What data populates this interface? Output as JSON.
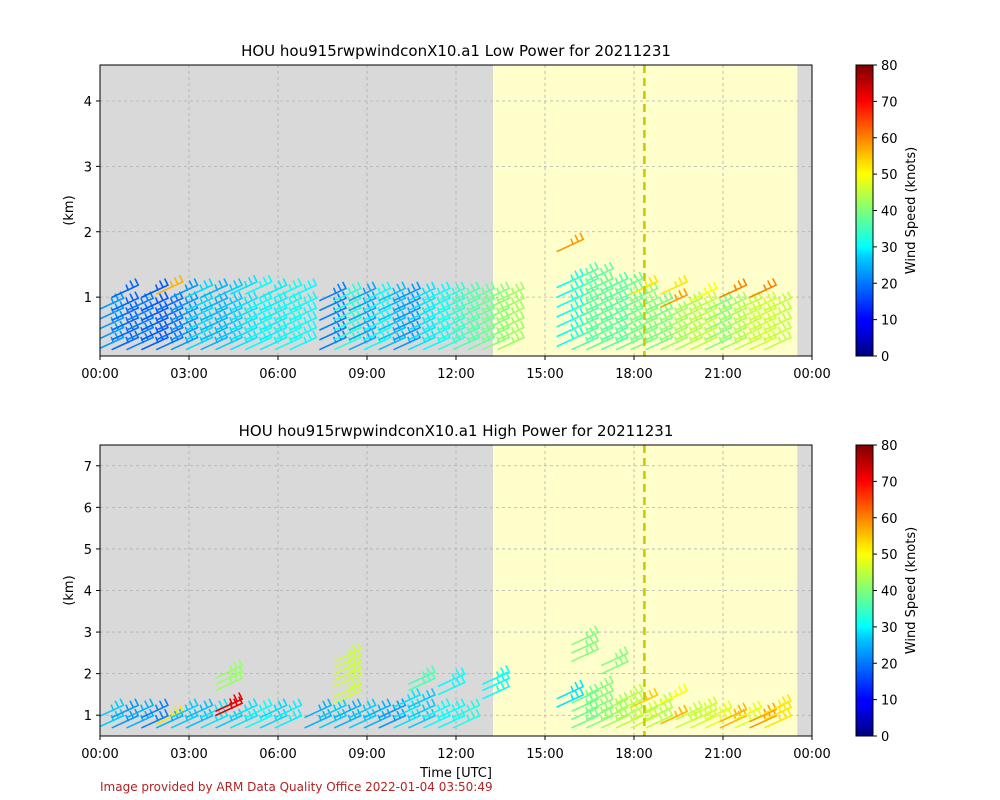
{
  "chart_data": [
    {
      "type": "barbs",
      "title": "HOU hou915rwpwindconX10.a1 Low Power for 20211231",
      "ylabel": "(km)",
      "xlabel": "",
      "x_ticks": [
        "00:00",
        "03:00",
        "06:00",
        "09:00",
        "12:00",
        "15:00",
        "18:00",
        "21:00",
        "00:00"
      ],
      "xlim_hours": [
        0,
        24
      ],
      "y_ticks": [
        "1",
        "2",
        "3",
        "4"
      ],
      "ylim": [
        0.1,
        4.55
      ],
      "grid": true,
      "night_shading_hours": [
        [
          0,
          13.25
        ],
        [
          23.5,
          24
        ]
      ],
      "day_shading_hours": [
        13.25,
        23.5
      ],
      "dashed_line_hour": 18.35,
      "colorbar": {
        "label": "Wind Speed (knots)",
        "min": 0,
        "max": 80,
        "ticks": [
          "0",
          "10",
          "20",
          "30",
          "40",
          "50",
          "60",
          "70",
          "80"
        ]
      },
      "barbs": [
        {
          "t": 0.25,
          "heights": [
            0.2,
            0.35,
            0.5,
            0.65,
            0.8
          ],
          "speed": 22
        },
        {
          "t": 0.75,
          "heights": [
            0.2,
            0.35,
            0.5,
            0.65,
            0.8,
            1.0
          ],
          "speed": 18
        },
        {
          "t": 1.25,
          "heights": [
            0.2,
            0.35,
            0.5,
            0.65,
            0.8
          ],
          "speed": 20
        },
        {
          "t": 1.75,
          "heights": [
            0.2,
            0.35,
            0.5,
            0.65,
            0.8,
            1.0
          ],
          "speed": 17
        },
        {
          "t": 2.25,
          "heights": [
            0.2,
            0.35,
            0.5,
            0.65,
            0.8
          ],
          "speed": 19
        },
        {
          "t": 2.25,
          "heights": [
            1.05
          ],
          "speed": 56
        },
        {
          "t": 2.75,
          "heights": [
            0.2,
            0.35,
            0.5,
            0.65,
            0.8,
            1.0
          ],
          "speed": 22
        },
        {
          "t": 3.25,
          "heights": [
            0.2,
            0.35,
            0.5,
            0.65,
            0.8,
            1.0
          ],
          "speed": 27
        },
        {
          "t": 3.75,
          "heights": [
            0.2,
            0.35,
            0.5,
            0.65,
            0.8,
            1.0
          ],
          "speed": 24
        },
        {
          "t": 4.25,
          "heights": [
            0.2,
            0.35,
            0.5,
            0.65,
            0.8,
            1.0
          ],
          "speed": 26
        },
        {
          "t": 4.75,
          "heights": [
            0.2,
            0.35,
            0.5,
            0.65,
            0.8,
            1.05
          ],
          "speed": 28
        },
        {
          "t": 5.25,
          "heights": [
            0.2,
            0.35,
            0.5,
            0.65,
            0.8,
            1.05
          ],
          "speed": 30
        },
        {
          "t": 5.75,
          "heights": [
            0.2,
            0.35,
            0.5,
            0.65,
            0.8,
            1.0
          ],
          "speed": 29
        },
        {
          "t": 6.25,
          "heights": [
            0.2,
            0.35,
            0.5,
            0.65,
            0.8,
            1.0
          ],
          "speed": 31
        },
        {
          "t": 6.75,
          "heights": [
            0.2,
            0.35,
            0.5,
            0.65,
            0.8,
            1.0
          ],
          "speed": 30
        },
        {
          "t": 7.75,
          "heights": [
            0.2,
            0.35,
            0.5,
            0.65,
            0.8,
            0.95
          ],
          "speed": 20
        },
        {
          "t": 8.25,
          "heights": [
            0.2,
            0.35,
            0.5,
            0.65,
            0.8,
            0.95
          ],
          "speed": 33
        },
        {
          "t": 8.75,
          "heights": [
            0.2,
            0.35,
            0.5,
            0.65,
            0.8,
            0.95
          ],
          "speed": 23
        },
        {
          "t": 9.25,
          "heights": [
            0.2,
            0.35,
            0.5,
            0.65,
            0.8,
            0.95
          ],
          "speed": 30
        },
        {
          "t": 9.75,
          "heights": [
            0.2,
            0.35,
            0.5,
            0.65,
            0.8,
            0.95
          ],
          "speed": 25
        },
        {
          "t": 10.25,
          "heights": [
            0.2,
            0.35,
            0.5,
            0.65,
            0.8,
            0.95
          ],
          "speed": 22
        },
        {
          "t": 10.75,
          "heights": [
            0.2,
            0.35,
            0.5,
            0.65,
            0.8,
            0.95
          ],
          "speed": 28
        },
        {
          "t": 11.25,
          "heights": [
            0.2,
            0.35,
            0.5,
            0.65,
            0.8,
            0.95
          ],
          "speed": 30
        },
        {
          "t": 11.75,
          "heights": [
            0.2,
            0.35,
            0.5,
            0.65,
            0.8,
            0.95
          ],
          "speed": 33
        },
        {
          "t": 12.25,
          "heights": [
            0.2,
            0.35,
            0.5,
            0.65,
            0.8,
            0.95
          ],
          "speed": 36
        },
        {
          "t": 12.75,
          "heights": [
            0.2,
            0.35,
            0.5,
            0.65,
            0.8,
            0.95
          ],
          "speed": 38
        },
        {
          "t": 13.25,
          "heights": [
            0.2,
            0.35,
            0.5,
            0.65,
            0.8,
            0.95
          ],
          "speed": 40
        },
        {
          "t": 13.75,
          "heights": [
            0.2,
            0.35,
            0.5,
            0.65,
            0.8,
            0.95
          ],
          "speed": 42
        },
        {
          "t": 15.75,
          "heights": [
            0.25,
            0.4,
            0.55,
            0.7,
            0.85,
            1.0,
            1.15
          ],
          "speed": 30
        },
        {
          "t": 15.75,
          "heights": [
            1.7
          ],
          "speed": 58
        },
        {
          "t": 16.25,
          "heights": [
            0.2,
            0.35,
            0.5,
            0.65,
            0.8,
            0.95,
            1.1,
            1.25
          ],
          "speed": 36
        },
        {
          "t": 16.75,
          "heights": [
            0.2,
            0.35,
            0.5,
            0.65,
            0.8,
            0.95,
            1.1,
            1.25
          ],
          "speed": 37
        },
        {
          "t": 17.25,
          "heights": [
            0.2,
            0.35,
            0.5,
            0.65,
            0.8,
            0.95,
            1.1
          ],
          "speed": 36
        },
        {
          "t": 17.75,
          "heights": [
            0.2,
            0.35,
            0.5,
            0.65,
            0.8,
            0.95,
            1.1
          ],
          "speed": 38
        },
        {
          "t": 18.25,
          "heights": [
            0.2,
            0.35,
            0.5,
            0.65,
            0.8,
            0.95
          ],
          "speed": 40
        },
        {
          "t": 18.25,
          "heights": [
            1.05
          ],
          "speed": 52
        },
        {
          "t": 18.75,
          "heights": [
            0.2,
            0.35,
            0.5,
            0.65,
            0.8
          ],
          "speed": 39
        },
        {
          "t": 19.25,
          "heights": [
            0.2,
            0.35,
            0.5,
            0.65
          ],
          "speed": 42
        },
        {
          "t": 19.25,
          "heights": [
            0.85
          ],
          "speed": 58
        },
        {
          "t": 19.25,
          "heights": [
            1.05
          ],
          "speed": 52
        },
        {
          "t": 19.75,
          "heights": [
            0.2,
            0.35,
            0.5,
            0.65,
            0.8
          ],
          "speed": 43
        },
        {
          "t": 20.25,
          "heights": [
            0.2,
            0.35,
            0.5,
            0.65,
            0.8
          ],
          "speed": 45
        },
        {
          "t": 20.25,
          "heights": [
            0.95
          ],
          "speed": 50
        },
        {
          "t": 20.75,
          "heights": [
            0.2,
            0.35,
            0.5,
            0.65,
            0.8
          ],
          "speed": 40
        },
        {
          "t": 21.25,
          "heights": [
            0.2,
            0.35,
            0.5,
            0.65,
            0.8
          ],
          "speed": 43
        },
        {
          "t": 21.25,
          "heights": [
            1.0
          ],
          "speed": 60
        },
        {
          "t": 21.75,
          "heights": [
            0.2,
            0.35,
            0.5,
            0.65,
            0.8
          ],
          "speed": 45
        },
        {
          "t": 22.25,
          "heights": [
            0.2,
            0.35,
            0.5,
            0.65,
            0.8
          ],
          "speed": 46
        },
        {
          "t": 22.25,
          "heights": [
            1.0
          ],
          "speed": 60
        },
        {
          "t": 22.75,
          "heights": [
            0.2,
            0.35,
            0.5,
            0.65,
            0.8
          ],
          "speed": 45
        }
      ]
    },
    {
      "type": "barbs",
      "title": "HOU hou915rwpwindconX10.a1 High Power for 20211231",
      "ylabel": "(km)",
      "xlabel": "Time [UTC]",
      "x_ticks": [
        "00:00",
        "03:00",
        "06:00",
        "09:00",
        "12:00",
        "15:00",
        "18:00",
        "21:00",
        "00:00"
      ],
      "xlim_hours": [
        0,
        24
      ],
      "y_ticks": [
        "1",
        "2",
        "3",
        "4",
        "5",
        "6",
        "7"
      ],
      "ylim": [
        0.5,
        7.5
      ],
      "grid": true,
      "night_shading_hours": [
        [
          0,
          13.25
        ],
        [
          23.5,
          24
        ]
      ],
      "day_shading_hours": [
        13.25,
        23.5
      ],
      "dashed_line_hour": 18.35,
      "colorbar": {
        "label": "Wind Speed (knots)",
        "min": 0,
        "max": 80,
        "ticks": [
          "0",
          "10",
          "20",
          "30",
          "40",
          "50",
          "60",
          "70",
          "80"
        ]
      },
      "barbs": [
        {
          "t": 0.25,
          "heights": [
            0.7,
            0.95
          ],
          "speed": 26
        },
        {
          "t": 0.75,
          "heights": [
            0.7,
            0.95
          ],
          "speed": 22
        },
        {
          "t": 1.25,
          "heights": [
            0.7,
            0.95
          ],
          "speed": 24
        },
        {
          "t": 1.75,
          "heights": [
            0.7,
            0.95
          ],
          "speed": 20
        },
        {
          "t": 2.25,
          "heights": [
            0.7
          ],
          "speed": 24
        },
        {
          "t": 2.25,
          "heights": [
            0.8
          ],
          "speed": 52
        },
        {
          "t": 2.75,
          "heights": [
            0.7,
            0.95
          ],
          "speed": 26
        },
        {
          "t": 3.25,
          "heights": [
            0.7,
            0.95
          ],
          "speed": 25
        },
        {
          "t": 3.75,
          "heights": [
            0.7,
            0.95
          ],
          "speed": 28
        },
        {
          "t": 4.25,
          "heights": [
            0.7
          ],
          "speed": 26
        },
        {
          "t": 4.25,
          "heights": [
            1.0,
            1.1
          ],
          "speed": 72
        },
        {
          "t": 4.25,
          "heights": [
            1.6,
            1.75,
            1.9
          ],
          "speed": 42
        },
        {
          "t": 4.75,
          "heights": [
            0.7,
            0.95
          ],
          "speed": 28
        },
        {
          "t": 5.25,
          "heights": [
            0.7,
            0.95
          ],
          "speed": 30
        },
        {
          "t": 5.75,
          "heights": [
            0.7,
            0.95
          ],
          "speed": 27
        },
        {
          "t": 6.25,
          "heights": [
            0.7,
            0.95
          ],
          "speed": 29
        },
        {
          "t": 7.25,
          "heights": [
            0.7,
            0.95
          ],
          "speed": 24
        },
        {
          "t": 7.75,
          "heights": [
            0.7,
            0.95
          ],
          "speed": 26
        },
        {
          "t": 8.25,
          "heights": [
            0.7,
            0.95
          ],
          "speed": 24
        },
        {
          "t": 8.25,
          "heights": [
            1.3,
            1.45
          ],
          "speed": 46
        },
        {
          "t": 8.25,
          "heights": [
            1.7,
            1.85,
            2.0,
            2.15,
            2.3
          ],
          "speed": 46
        },
        {
          "t": 8.75,
          "heights": [
            0.7,
            0.95
          ],
          "speed": 26
        },
        {
          "t": 9.25,
          "heights": [
            0.7,
            0.95
          ],
          "speed": 24
        },
        {
          "t": 9.75,
          "heights": [
            0.7,
            0.95
          ],
          "speed": 22
        },
        {
          "t": 10.25,
          "heights": [
            0.7,
            0.95,
            1.2
          ],
          "speed": 28
        },
        {
          "t": 10.75,
          "heights": [
            0.7,
            0.95,
            1.2
          ],
          "speed": 26
        },
        {
          "t": 10.75,
          "heights": [
            1.6,
            1.75
          ],
          "speed": 36
        },
        {
          "t": 11.25,
          "heights": [
            0.7,
            0.95
          ],
          "speed": 30
        },
        {
          "t": 11.75,
          "heights": [
            0.7,
            0.95
          ],
          "speed": 30
        },
        {
          "t": 11.75,
          "heights": [
            1.5,
            1.7
          ],
          "speed": 30
        },
        {
          "t": 12.25,
          "heights": [
            0.7,
            0.95
          ],
          "speed": 32
        },
        {
          "t": 13.25,
          "heights": [
            1.4,
            1.6,
            1.75
          ],
          "speed": 30
        },
        {
          "t": 15.75,
          "heights": [
            1.2,
            1.4
          ],
          "speed": 28
        },
        {
          "t": 16.25,
          "heights": [
            0.7,
            0.9,
            1.1,
            1.3
          ],
          "speed": 38
        },
        {
          "t": 16.25,
          "heights": [
            2.3,
            2.5,
            2.7
          ],
          "speed": 40
        },
        {
          "t": 16.75,
          "heights": [
            0.7,
            0.9,
            1.1,
            1.3,
            1.5
          ],
          "speed": 40
        },
        {
          "t": 17.25,
          "heights": [
            0.7,
            0.9,
            1.1
          ],
          "speed": 42
        },
        {
          "t": 17.25,
          "heights": [
            2.0,
            2.2
          ],
          "speed": 40
        },
        {
          "t": 17.75,
          "heights": [
            0.7,
            0.9,
            1.1,
            1.3
          ],
          "speed": 44
        },
        {
          "t": 18.25,
          "heights": [
            0.7,
            0.9
          ],
          "speed": 46
        },
        {
          "t": 18.25,
          "heights": [
            1.2
          ],
          "speed": 54
        },
        {
          "t": 18.75,
          "heights": [
            0.7,
            0.9,
            1.1
          ],
          "speed": 44
        },
        {
          "t": 19.25,
          "heights": [
            0.8
          ],
          "speed": 56
        },
        {
          "t": 19.25,
          "heights": [
            1.3
          ],
          "speed": 50
        },
        {
          "t": 19.75,
          "heights": [
            0.7,
            0.9
          ],
          "speed": 45
        },
        {
          "t": 20.25,
          "heights": [
            0.7,
            0.85,
            1.0
          ],
          "speed": 46
        },
        {
          "t": 20.75,
          "heights": [
            0.7,
            0.9
          ],
          "speed": 48
        },
        {
          "t": 21.25,
          "heights": [
            0.7,
            0.85
          ],
          "speed": 56
        },
        {
          "t": 21.75,
          "heights": [
            0.7,
            0.9
          ],
          "speed": 48
        },
        {
          "t": 22.25,
          "heights": [
            0.7,
            0.85
          ],
          "speed": 58
        },
        {
          "t": 22.75,
          "heights": [
            0.7,
            0.9,
            1.05
          ],
          "speed": 52
        }
      ]
    }
  ],
  "footer": "Image provided by ARM Data Quality Office 2022-01-04 03:50:49"
}
